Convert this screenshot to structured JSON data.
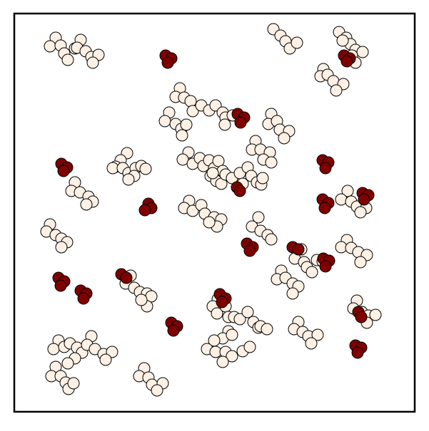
{
  "colors": {
    "light_circle_fill": "#fdf0e4",
    "dark_circle_fill": "#800000",
    "circle_stroke": "#000000",
    "frame_stroke": "#000000",
    "background": "#ffffff"
  },
  "legend": null,
  "title": null
}
